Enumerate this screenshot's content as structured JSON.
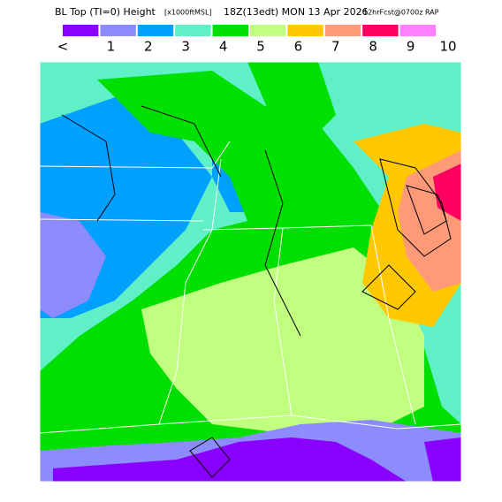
{
  "header": {
    "title": "BL Top (TI=0) Height",
    "units": "[x1000ftMSL]",
    "valid": "18Z(13edt) MON 13 Apr 2026",
    "forecast": "12hrFcst@0700z RAP"
  },
  "legend": {
    "colors": [
      "#8a00ff",
      "#8c8cff",
      "#00a0ff",
      "#60f0c8",
      "#00e000",
      "#c0ff80",
      "#ffc800",
      "#ff9a78",
      "#ff0060",
      "#ff80ff"
    ],
    "labels": [
      "<",
      "1",
      "2",
      "3",
      "4",
      "5",
      "6",
      "7",
      "8",
      "9",
      "10"
    ]
  }
}
